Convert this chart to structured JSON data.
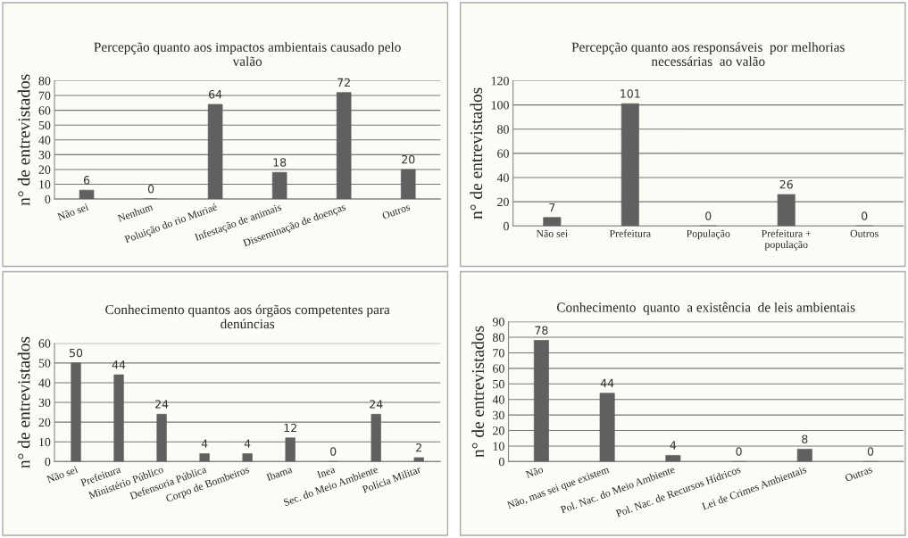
{
  "chart_data": [
    {
      "type": "bar",
      "title": "Percepção quanto aos impactos ambientais causado pelo\nvalão",
      "ylabel": "n° de entrevistados",
      "categories": [
        "Não sei",
        "Nenhum",
        "Poluição do rio Muriaé",
        "Infestação de animais",
        "Disseminação de doenças",
        "Outros"
      ],
      "values": [
        6,
        0,
        64,
        18,
        72,
        20
      ],
      "color": "#606060",
      "ylim": [
        0,
        80
      ],
      "yticks": [
        0,
        10,
        20,
        30,
        40,
        50,
        60,
        70,
        80
      ],
      "grid": "y",
      "data_labels": true
    },
    {
      "type": "bar",
      "title": "Percepção quanto aos responsáveis  por melhorias\nnecessárias  ao valão",
      "ylabel": "n° de entrevistados",
      "categories": [
        "Não sei",
        "Prefeitura",
        "População",
        "Prefeitura +\npopulação",
        "Outros"
      ],
      "values": [
        7,
        101,
        0,
        26,
        0
      ],
      "color": "#606060",
      "ylim": [
        0,
        120
      ],
      "yticks": [
        0,
        20,
        40,
        60,
        80,
        100,
        120
      ],
      "grid": "y",
      "data_labels": true
    },
    {
      "type": "bar",
      "title": "Conhecimento quantos aos órgãos competentes para\ndenúncias",
      "ylabel": "n° de entrevistados",
      "categories": [
        "Não sei",
        "Prefeitura",
        "Ministério Público",
        "Defensoria Pública",
        "Corpo de Bombeiros",
        "Ibama",
        "Inea",
        "Sec. do Meio Ambiente",
        "Polícia Militar"
      ],
      "values": [
        50,
        44,
        24,
        4,
        4,
        12,
        0,
        24,
        2
      ],
      "color": "#606060",
      "ylim": [
        0,
        60
      ],
      "yticks": [
        0,
        10,
        20,
        30,
        40,
        50,
        60
      ],
      "grid": "y",
      "data_labels": true
    },
    {
      "type": "bar",
      "title": "Conhecimento  quanto  a existência  de leis ambientais",
      "ylabel": "n° de entrevistados",
      "categories": [
        "Não",
        "Não, mas sei que existem",
        "Pol. Nac. do Meio Ambiente",
        "Pol. Nac. de Recursos Hídricos",
        "Lei de Crimes Ambientais",
        "Outras"
      ],
      "values": [
        78,
        44,
        4,
        0,
        8,
        0
      ],
      "color": "#606060",
      "ylim": [
        0,
        90
      ],
      "yticks": [
        0,
        10,
        20,
        30,
        40,
        50,
        60,
        70,
        80,
        90
      ],
      "grid": "y",
      "data_labels": true
    }
  ]
}
